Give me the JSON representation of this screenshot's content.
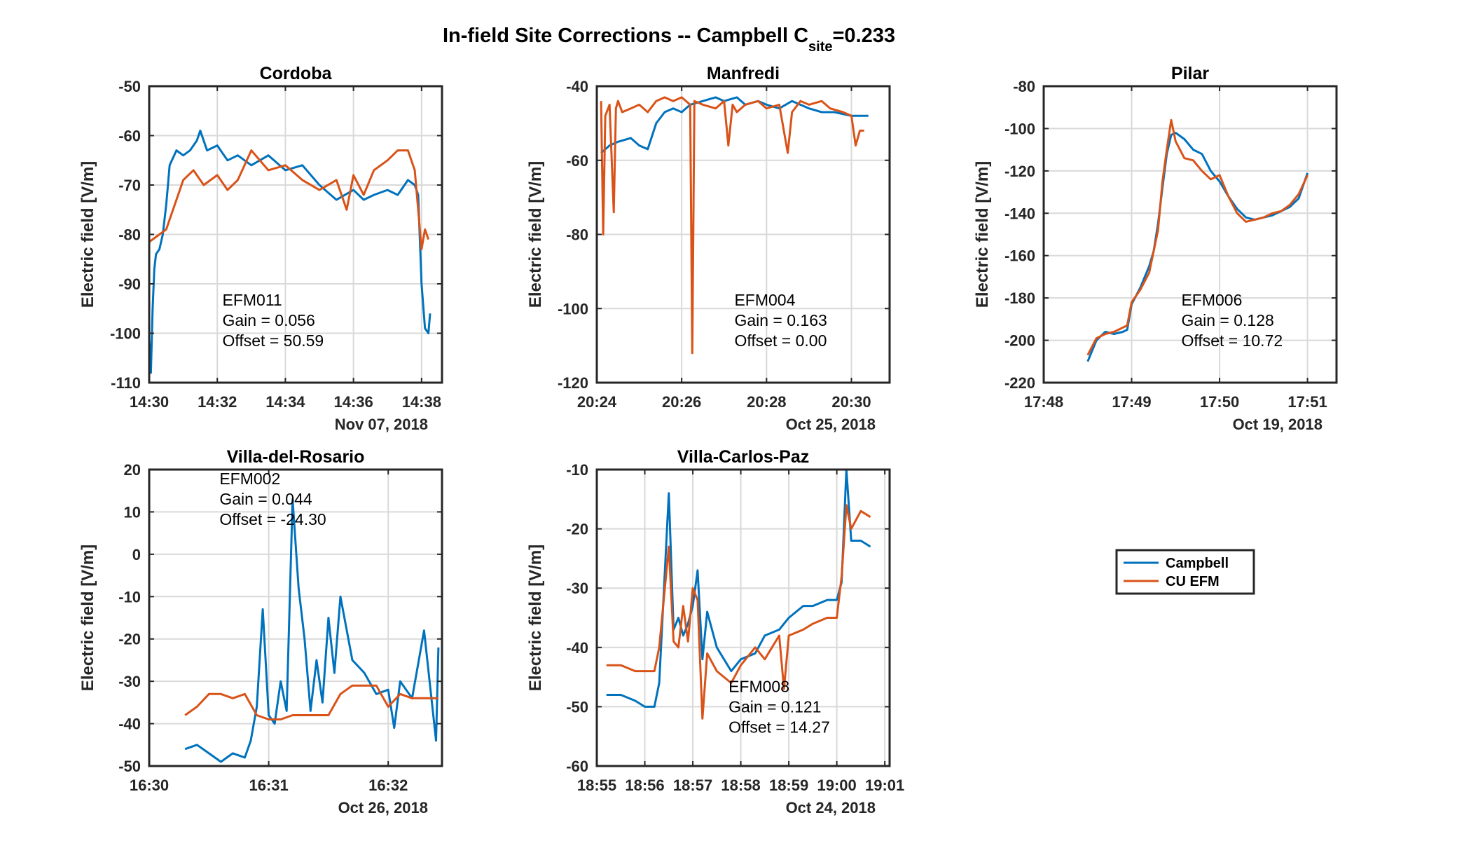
{
  "figure": {
    "title_main": "In-field Site Corrections -- Campbell C",
    "title_sub": "site",
    "title_tail": "=0.233"
  },
  "colors": {
    "campbell": "#0072BD",
    "cu_efm": "#D95319",
    "grid": "#d9d9d9",
    "axis": "#262626"
  },
  "legend": {
    "entries": [
      "Campbell",
      "CU EFM"
    ],
    "placement": "bottom-right empty tile"
  },
  "chart_data": [
    {
      "type": "line",
      "title": "Cordoba",
      "ylabel": "Electric field [V/m]",
      "xlabel": "",
      "date_label": "Nov 07, 2018",
      "x_unit": "clock time (minutes)",
      "xlim": [
        870,
        878.6
      ],
      "ylim": [
        -110,
        -50
      ],
      "xticks": [
        "14:30",
        "14:32",
        "14:34",
        "14:36",
        "14:38"
      ],
      "xtick_values": [
        870,
        872,
        874,
        876,
        878
      ],
      "yticks": [
        -50,
        -60,
        -70,
        -80,
        -90,
        -100,
        -110
      ],
      "annotation": [
        "EFM011",
        "Gain = 0.056",
        "Offset = 50.59"
      ],
      "series": [
        {
          "name": "Campbell",
          "color": "#0072BD",
          "x": [
            869.9,
            870.0,
            870.05,
            870.1,
            870.15,
            870.2,
            870.3,
            870.4,
            870.5,
            870.6,
            870.8,
            871.0,
            871.2,
            871.4,
            871.5,
            871.7,
            872.0,
            872.3,
            872.6,
            873.0,
            873.5,
            874.0,
            874.5,
            875.0,
            875.5,
            876.0,
            876.3,
            876.6,
            877.0,
            877.3,
            877.6,
            877.8,
            877.9,
            878.0,
            878.1,
            878.2,
            878.25
          ],
          "y": [
            -110,
            -101,
            -108,
            -95,
            -87,
            -84,
            -83,
            -80,
            -74,
            -66,
            -63,
            -64,
            -63,
            -61,
            -59,
            -63,
            -62,
            -65,
            -64,
            -66,
            -64,
            -67,
            -66,
            -70,
            -73,
            -71,
            -73,
            -72,
            -71,
            -72,
            -69,
            -70,
            -72,
            -90,
            -99,
            -100,
            -96
          ]
        },
        {
          "name": "CU EFM",
          "color": "#D95319",
          "x": [
            869.9,
            870.1,
            870.3,
            870.5,
            870.7,
            871.0,
            871.3,
            871.6,
            872.0,
            872.3,
            872.6,
            873.0,
            873.5,
            874.0,
            874.5,
            875.0,
            875.5,
            875.8,
            876.0,
            876.3,
            876.6,
            877.0,
            877.3,
            877.6,
            877.8,
            877.9,
            878.0,
            878.1,
            878.2
          ],
          "y": [
            -82,
            -81,
            -80,
            -79,
            -75,
            -69,
            -67,
            -70,
            -68,
            -71,
            -69,
            -63,
            -67,
            -66,
            -69,
            -71,
            -69,
            -75,
            -68,
            -72,
            -67,
            -65,
            -63,
            -63,
            -67,
            -75,
            -83,
            -79,
            -81
          ]
        }
      ]
    },
    {
      "type": "line",
      "title": "Manfredi",
      "ylabel": "Electric field [V/m]",
      "xlabel": "",
      "date_label": "Oct 25, 2018",
      "x_unit": "clock time (minutes)",
      "xlim": [
        1224,
        1230.9
      ],
      "ylim": [
        -120,
        -40
      ],
      "xticks": [
        "20:24",
        "20:26",
        "20:28",
        "20:30"
      ],
      "xtick_values": [
        1224,
        1226,
        1228,
        1230
      ],
      "yticks": [
        -40,
        -60,
        -80,
        -100,
        -120
      ],
      "annotation": [
        "EFM004",
        "Gain = 0.163",
        "Offset = 0.00"
      ],
      "series": [
        {
          "name": "Campbell",
          "color": "#0072BD",
          "x": [
            1224.1,
            1224.3,
            1224.5,
            1224.8,
            1225.0,
            1225.2,
            1225.4,
            1225.6,
            1225.8,
            1226.0,
            1226.2,
            1226.5,
            1226.8,
            1227.0,
            1227.3,
            1227.5,
            1227.8,
            1228.0,
            1228.3,
            1228.6,
            1229.0,
            1229.3,
            1229.6,
            1230.0,
            1230.2,
            1230.4
          ],
          "y": [
            -58,
            -56,
            -55,
            -54,
            -56,
            -57,
            -50,
            -47,
            -46,
            -47,
            -45,
            -44,
            -43,
            -44,
            -43,
            -45,
            -44,
            -45,
            -46,
            -44,
            -46,
            -47,
            -47,
            -48,
            -48,
            -48
          ]
        },
        {
          "name": "CU EFM",
          "color": "#D95319",
          "x": [
            1224.1,
            1224.15,
            1224.2,
            1224.3,
            1224.4,
            1224.45,
            1224.5,
            1224.6,
            1224.8,
            1225.0,
            1225.2,
            1225.4,
            1225.6,
            1225.8,
            1226.0,
            1226.2,
            1226.25,
            1226.3,
            1226.5,
            1226.8,
            1227.0,
            1227.1,
            1227.2,
            1227.3,
            1227.5,
            1227.8,
            1228.0,
            1228.3,
            1228.5,
            1228.6,
            1228.8,
            1229.0,
            1229.3,
            1229.5,
            1229.8,
            1230.0,
            1230.1,
            1230.2,
            1230.3
          ],
          "y": [
            -44,
            -80,
            -48,
            -45,
            -74,
            -46,
            -44,
            -47,
            -46,
            -45,
            -47,
            -44,
            -43,
            -44,
            -43,
            -45,
            -112,
            -44,
            -45,
            -46,
            -44,
            -56,
            -45,
            -47,
            -45,
            -44,
            -46,
            -45,
            -58,
            -47,
            -44,
            -45,
            -44,
            -46,
            -47,
            -48,
            -56,
            -52,
            -52
          ]
        }
      ]
    },
    {
      "type": "line",
      "title": "Pilar",
      "ylabel": "Electric field [V/m]",
      "xlabel": "",
      "date_label": "Oct 19, 2018",
      "x_unit": "clock time (minutes)",
      "xlim": [
        1068,
        1071.33
      ],
      "ylim": [
        -220,
        -80
      ],
      "xticks": [
        "17:48",
        "17:49",
        "17:50",
        "17:51"
      ],
      "xtick_values": [
        1068,
        1069,
        1070,
        1071
      ],
      "yticks": [
        -80,
        -100,
        -120,
        -140,
        -160,
        -180,
        -200,
        -220
      ],
      "annotation": [
        "EFM006",
        "Gain = 0.128",
        "Offset = 10.72"
      ],
      "series": [
        {
          "name": "Campbell",
          "color": "#0072BD",
          "x": [
            1068.5,
            1068.6,
            1068.7,
            1068.8,
            1068.9,
            1068.95,
            1069.0,
            1069.1,
            1069.2,
            1069.25,
            1069.3,
            1069.35,
            1069.4,
            1069.45,
            1069.5,
            1069.6,
            1069.7,
            1069.8,
            1069.9,
            1070.0,
            1070.1,
            1070.2,
            1070.3,
            1070.4,
            1070.5,
            1070.6,
            1070.7,
            1070.8,
            1070.9,
            1071.0
          ],
          "y": [
            -210,
            -200,
            -196,
            -197,
            -196,
            -195,
            -183,
            -175,
            -165,
            -158,
            -145,
            -128,
            -112,
            -103,
            -102,
            -105,
            -110,
            -112,
            -120,
            -125,
            -132,
            -138,
            -142,
            -143,
            -142,
            -141,
            -139,
            -137,
            -133,
            -121
          ]
        },
        {
          "name": "CU EFM",
          "color": "#D95319",
          "x": [
            1068.5,
            1068.6,
            1068.7,
            1068.8,
            1068.9,
            1068.95,
            1069.0,
            1069.1,
            1069.2,
            1069.25,
            1069.3,
            1069.35,
            1069.4,
            1069.45,
            1069.5,
            1069.6,
            1069.7,
            1069.8,
            1069.9,
            1070.0,
            1070.1,
            1070.2,
            1070.3,
            1070.4,
            1070.5,
            1070.6,
            1070.7,
            1070.8,
            1070.9,
            1071.0
          ],
          "y": [
            -207,
            -199,
            -197,
            -196,
            -194,
            -193,
            -182,
            -176,
            -168,
            -158,
            -148,
            -125,
            -110,
            -96,
            -106,
            -114,
            -115,
            -120,
            -124,
            -122,
            -132,
            -140,
            -144,
            -143,
            -142,
            -140,
            -139,
            -136,
            -131,
            -122
          ]
        }
      ]
    },
    {
      "type": "line",
      "title": "Villa-del-Rosario",
      "ylabel": "Electric field [V/m]",
      "xlabel": "",
      "date_label": "Oct 26, 2018",
      "x_unit": "clock time (minutes)",
      "xlim": [
        990,
        992.45
      ],
      "ylim": [
        -50,
        20
      ],
      "xticks": [
        "16:30",
        "16:31",
        "16:32"
      ],
      "xtick_values": [
        990,
        991,
        992
      ],
      "yticks": [
        20,
        10,
        0,
        -10,
        -20,
        -30,
        -40,
        -50
      ],
      "annotation": [
        "EFM002",
        "Gain = 0.044",
        "Offset = -24.30"
      ],
      "series": [
        {
          "name": "Campbell",
          "color": "#0072BD",
          "x": [
            990.3,
            990.4,
            990.5,
            990.6,
            990.7,
            990.8,
            990.85,
            990.9,
            990.95,
            991.0,
            991.05,
            991.1,
            991.15,
            991.2,
            991.25,
            991.3,
            991.35,
            991.4,
            991.45,
            991.5,
            991.55,
            991.6,
            991.7,
            991.8,
            991.9,
            992.0,
            992.05,
            992.1,
            992.2,
            992.3,
            992.4,
            992.42
          ],
          "y": [
            -46,
            -45,
            -47,
            -49,
            -47,
            -48,
            -44,
            -36,
            -13,
            -38,
            -40,
            -30,
            -37,
            13,
            -8,
            -20,
            -37,
            -25,
            -35,
            -15,
            -28,
            -10,
            -25,
            -28,
            -33,
            -32,
            -41,
            -30,
            -34,
            -18,
            -44,
            -22
          ]
        },
        {
          "name": "CU EFM",
          "color": "#D95319",
          "x": [
            990.3,
            990.4,
            990.5,
            990.6,
            990.7,
            990.8,
            990.9,
            991.0,
            991.1,
            991.2,
            991.3,
            991.4,
            991.5,
            991.6,
            991.7,
            991.8,
            991.9,
            992.0,
            992.1,
            992.2,
            992.3,
            992.42
          ],
          "y": [
            -38,
            -36,
            -33,
            -33,
            -34,
            -33,
            -38,
            -39,
            -39,
            -38,
            -38,
            -38,
            -38,
            -33,
            -31,
            -31,
            -31,
            -36,
            -33,
            -34,
            -34,
            -34
          ]
        }
      ]
    },
    {
      "type": "line",
      "title": "Villa-Carlos-Paz",
      "ylabel": "Electric field [V/m]",
      "xlabel": "",
      "date_label": "Oct 24, 2018",
      "x_unit": "clock time (minutes)",
      "xlim": [
        1135,
        1141.1
      ],
      "ylim": [
        -60,
        -10
      ],
      "xticks": [
        "18:55",
        "18:56",
        "18:57",
        "18:58",
        "18:59",
        "19:00",
        "19:01"
      ],
      "xtick_values": [
        1135,
        1136,
        1137,
        1138,
        1139,
        1140,
        1141
      ],
      "yticks": [
        -10,
        -20,
        -30,
        -40,
        -50,
        -60
      ],
      "annotation": [
        "EFM008",
        "Gain = 0.121",
        "Offset = 14.27"
      ],
      "series": [
        {
          "name": "Campbell",
          "color": "#0072BD",
          "x": [
            1135.2,
            1135.5,
            1135.8,
            1136.0,
            1136.2,
            1136.3,
            1136.5,
            1136.6,
            1136.7,
            1136.8,
            1136.9,
            1137.0,
            1137.1,
            1137.2,
            1137.3,
            1137.5,
            1137.8,
            1138.0,
            1138.3,
            1138.5,
            1138.8,
            1139.0,
            1139.3,
            1139.5,
            1139.8,
            1140.0,
            1140.1,
            1140.2,
            1140.3,
            1140.5,
            1140.7
          ],
          "y": [
            -48,
            -48,
            -49,
            -50,
            -50,
            -46,
            -14,
            -37,
            -35,
            -38,
            -36,
            -33,
            -27,
            -42,
            -34,
            -40,
            -44,
            -42,
            -41,
            -38,
            -37,
            -35,
            -33,
            -33,
            -32,
            -32,
            -29,
            -10,
            -22,
            -22,
            -23
          ]
        },
        {
          "name": "CU EFM",
          "color": "#D95319",
          "x": [
            1135.2,
            1135.5,
            1135.8,
            1136.0,
            1136.2,
            1136.3,
            1136.5,
            1136.6,
            1136.7,
            1136.8,
            1136.9,
            1137.0,
            1137.1,
            1137.2,
            1137.3,
            1137.5,
            1137.8,
            1138.0,
            1138.3,
            1138.5,
            1138.8,
            1138.9,
            1139.0,
            1139.3,
            1139.5,
            1139.8,
            1140.0,
            1140.1,
            1140.2,
            1140.3,
            1140.5,
            1140.7
          ],
          "y": [
            -43,
            -43,
            -44,
            -44,
            -44,
            -40,
            -23,
            -39,
            -40,
            -33,
            -39,
            -30,
            -32,
            -52,
            -41,
            -44,
            -46,
            -43,
            -40,
            -42,
            -38,
            -47,
            -38,
            -37,
            -36,
            -35,
            -35,
            -28,
            -16,
            -20,
            -17,
            -18
          ]
        }
      ]
    }
  ]
}
